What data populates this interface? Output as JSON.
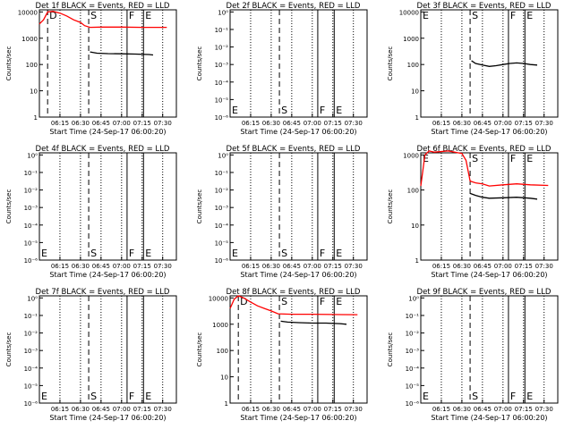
{
  "chart_data": [
    {
      "type": "line",
      "title": "Det 1f BLACK = Events, RED = LLD",
      "xlabel": "Start Time (24-Sep-17 06:00:20)",
      "ylabel": "Counts/sec",
      "yscale": "log",
      "x_ticks": [
        "06:15",
        "06:30",
        "06:45",
        "07:00",
        "07:15",
        "07:30"
      ],
      "y_ticks": [
        "1",
        "10",
        "100",
        "1000",
        "10000"
      ],
      "markers": [
        {
          "label": "D",
          "type": "dashed",
          "x": "06:06"
        },
        {
          "label": "S",
          "type": "dashed",
          "x": "06:36"
        },
        {
          "label": "F",
          "type": "solid",
          "x": "07:04"
        },
        {
          "label": "E",
          "type": "solid",
          "x": "07:16"
        }
      ],
      "series": [
        {
          "name": "RED = LLD",
          "color": "#ff0000",
          "points": [
            [
              "06:00",
              3500
            ],
            [
              "06:03",
              5000
            ],
            [
              "06:06",
              10000
            ],
            [
              "06:10",
              10500
            ],
            [
              "06:15",
              9000
            ],
            [
              "06:20",
              7000
            ],
            [
              "06:25",
              5000
            ],
            [
              "06:30",
              4000
            ],
            [
              "06:33",
              3000
            ],
            [
              "06:37",
              2600
            ],
            [
              "06:45",
              2650
            ],
            [
              "07:00",
              2650
            ],
            [
              "07:15",
              2600
            ],
            [
              "07:33",
              2600
            ]
          ]
        },
        {
          "name": "BLACK = Events",
          "color": "#000000",
          "points": [
            [
              "06:37",
              300
            ],
            [
              "06:42",
              270
            ],
            [
              "06:50",
              260
            ],
            [
              "07:00",
              255
            ],
            [
              "07:10",
              250
            ],
            [
              "07:20",
              240
            ],
            [
              "07:23",
              230
            ]
          ]
        }
      ]
    },
    {
      "type": "line",
      "title": "Det 2f BLACK = Events, RED = LLD",
      "xlabel": "Start Time (24-Sep-17 06:00:20)",
      "ylabel": "Counts/sec",
      "yscale": "log",
      "x_ticks": [
        "06:15",
        "06:30",
        "06:45",
        "07:00",
        "07:15",
        "07:30"
      ],
      "y_ticks": [
        "10⁰",
        "10⁻¹",
        "10⁻²",
        "10⁻³",
        "10⁻⁴",
        "10⁻⁵",
        "10⁻⁶"
      ],
      "markers": [
        {
          "label": "E",
          "type": "dashed",
          "x": "06:00"
        },
        {
          "label": "S",
          "type": "dashed",
          "x": "06:36"
        },
        {
          "label": "F",
          "type": "solid",
          "x": "07:04"
        },
        {
          "label": "E",
          "type": "solid",
          "x": "07:16"
        }
      ],
      "series": []
    },
    {
      "type": "line",
      "title": "Det 3f BLACK = Events, RED = LLD",
      "xlabel": "Start Time (24-Sep-17 06:00:20)",
      "ylabel": "Counts/sec",
      "yscale": "log",
      "x_ticks": [
        "06:15",
        "06:30",
        "06:45",
        "07:00",
        "07:15",
        "07:30"
      ],
      "y_ticks": [
        "1",
        "10",
        "100",
        "1000",
        "10000"
      ],
      "markers": [
        {
          "label": "E",
          "type": "dashed",
          "x": "06:00"
        },
        {
          "label": "S",
          "type": "dashed",
          "x": "06:36"
        },
        {
          "label": "F",
          "type": "solid",
          "x": "07:04"
        },
        {
          "label": "E",
          "type": "solid",
          "x": "07:16"
        }
      ],
      "series": [
        {
          "name": "BLACK = Events",
          "color": "#000000",
          "points": [
            [
              "06:37",
              140
            ],
            [
              "06:40",
              110
            ],
            [
              "06:45",
              95
            ],
            [
              "06:50",
              85
            ],
            [
              "06:55",
              90
            ],
            [
              "07:00",
              100
            ],
            [
              "07:05",
              110
            ],
            [
              "07:10",
              115
            ],
            [
              "07:15",
              110
            ],
            [
              "07:20",
              100
            ],
            [
              "07:25",
              95
            ]
          ]
        }
      ]
    },
    {
      "type": "line",
      "title": "Det 4f BLACK = Events, RED = LLD",
      "xlabel": "Start Time (24-Sep-17 06:00:20)",
      "ylabel": "Counts/sec",
      "yscale": "log",
      "x_ticks": [
        "06:15",
        "06:30",
        "06:45",
        "07:00",
        "07:15",
        "07:30"
      ],
      "y_ticks": [
        "10⁰",
        "10⁻¹",
        "10⁻²",
        "10⁻³",
        "10⁻⁴",
        "10⁻⁵",
        "10⁻⁶"
      ],
      "markers": [
        {
          "label": "E",
          "type": "dashed",
          "x": "06:00"
        },
        {
          "label": "S",
          "type": "dashed",
          "x": "06:36"
        },
        {
          "label": "F",
          "type": "solid",
          "x": "07:04"
        },
        {
          "label": "E",
          "type": "solid",
          "x": "07:16"
        }
      ],
      "series": []
    },
    {
      "type": "line",
      "title": "Det 5f BLACK = Events, RED = LLD",
      "xlabel": "Start Time (24-Sep-17 06:00:20)",
      "ylabel": "Counts/sec",
      "yscale": "log",
      "x_ticks": [
        "06:15",
        "06:30",
        "06:45",
        "07:00",
        "07:15",
        "07:30"
      ],
      "y_ticks": [
        "10⁰",
        "10⁻¹",
        "10⁻²",
        "10⁻³",
        "10⁻⁴",
        "10⁻⁵",
        "10⁻⁶"
      ],
      "markers": [
        {
          "label": "E",
          "type": "dashed",
          "x": "06:00"
        },
        {
          "label": "S",
          "type": "dashed",
          "x": "06:36"
        },
        {
          "label": "F",
          "type": "solid",
          "x": "07:04"
        },
        {
          "label": "E",
          "type": "solid",
          "x": "07:16"
        }
      ],
      "series": []
    },
    {
      "type": "line",
      "title": "Det 6f BLACK = Events, RED = LLD",
      "xlabel": "Start Time (24-Sep-17 06:00:20)",
      "ylabel": "Counts/sec",
      "yscale": "log",
      "x_ticks": [
        "06:15",
        "06:30",
        "06:45",
        "07:00",
        "07:15",
        "07:30"
      ],
      "y_ticks": [
        "1",
        "10",
        "100",
        "1000"
      ],
      "markers": [
        {
          "label": "E",
          "type": "dashed",
          "x": "06:00"
        },
        {
          "label": "S",
          "type": "dashed",
          "x": "06:36"
        },
        {
          "label": "F",
          "type": "solid",
          "x": "07:04"
        },
        {
          "label": "E",
          "type": "solid",
          "x": "07:16"
        }
      ],
      "series": [
        {
          "name": "RED = LLD",
          "color": "#ff0000",
          "points": [
            [
              "06:00",
              130
            ],
            [
              "06:03",
              1000
            ],
            [
              "06:06",
              1300
            ],
            [
              "06:10",
              1200
            ],
            [
              "06:20",
              1300
            ],
            [
              "06:30",
              1100
            ],
            [
              "06:33",
              700
            ],
            [
              "06:36",
              180
            ],
            [
              "06:40",
              160
            ],
            [
              "06:45",
              150
            ],
            [
              "06:50",
              130
            ],
            [
              "07:00",
              140
            ],
            [
              "07:10",
              150
            ],
            [
              "07:20",
              140
            ],
            [
              "07:33",
              135
            ]
          ]
        },
        {
          "name": "BLACK = Events",
          "color": "#000000",
          "points": [
            [
              "06:36",
              80
            ],
            [
              "06:40",
              70
            ],
            [
              "06:45",
              62
            ],
            [
              "06:50",
              58
            ],
            [
              "07:00",
              60
            ],
            [
              "07:10",
              62
            ],
            [
              "07:20",
              58
            ],
            [
              "07:25",
              55
            ]
          ]
        }
      ]
    },
    {
      "type": "line",
      "title": "Det 7f BLACK = Events, RED = LLD",
      "xlabel": "Start Time (24-Sep-17 06:00:20)",
      "ylabel": "Counts/sec",
      "yscale": "log",
      "x_ticks": [
        "06:15",
        "06:30",
        "06:45",
        "07:00",
        "07:15",
        "07:30"
      ],
      "y_ticks": [
        "10⁰",
        "10⁻¹",
        "10⁻²",
        "10⁻³",
        "10⁻⁴",
        "10⁻⁵",
        "10⁻⁶"
      ],
      "markers": [
        {
          "label": "E",
          "type": "dashed",
          "x": "06:00"
        },
        {
          "label": "S",
          "type": "dashed",
          "x": "06:36"
        },
        {
          "label": "F",
          "type": "solid",
          "x": "07:04"
        },
        {
          "label": "E",
          "type": "solid",
          "x": "07:16"
        }
      ],
      "series": []
    },
    {
      "type": "line",
      "title": "Det 8f BLACK = Events, RED = LLD",
      "xlabel": "Start Time (24-Sep-17 06:00:20)",
      "ylabel": "Counts/sec",
      "yscale": "log",
      "x_ticks": [
        "06:15",
        "06:30",
        "06:45",
        "07:00",
        "07:15",
        "07:30"
      ],
      "y_ticks": [
        "1",
        "10",
        "100",
        "1000",
        "10000"
      ],
      "markers": [
        {
          "label": "D",
          "type": "dashed",
          "x": "06:06"
        },
        {
          "label": "S",
          "type": "dashed",
          "x": "06:36"
        },
        {
          "label": "F",
          "type": "solid",
          "x": "07:04"
        },
        {
          "label": "E",
          "type": "solid",
          "x": "07:16"
        }
      ],
      "series": [
        {
          "name": "RED = LLD",
          "color": "#ff0000",
          "points": [
            [
              "06:00",
              4000
            ],
            [
              "06:03",
              9000
            ],
            [
              "06:06",
              12000
            ],
            [
              "06:10",
              10000
            ],
            [
              "06:15",
              7000
            ],
            [
              "06:20",
              5000
            ],
            [
              "06:25",
              4000
            ],
            [
              "06:30",
              3200
            ],
            [
              "06:35",
              2500
            ],
            [
              "06:45",
              2400
            ],
            [
              "07:00",
              2400
            ],
            [
              "07:15",
              2350
            ],
            [
              "07:33",
              2300
            ]
          ]
        },
        {
          "name": "BLACK = Events",
          "color": "#000000",
          "points": [
            [
              "06:37",
              1300
            ],
            [
              "06:42",
              1200
            ],
            [
              "06:50",
              1150
            ],
            [
              "07:00",
              1100
            ],
            [
              "07:10",
              1100
            ],
            [
              "07:20",
              1050
            ],
            [
              "07:25",
              1000
            ]
          ]
        }
      ]
    },
    {
      "type": "line",
      "title": "Det 9f BLACK = Events, RED = LLD",
      "xlabel": "Start Time (24-Sep-17 06:00:20)",
      "ylabel": "Counts/sec",
      "yscale": "log",
      "x_ticks": [
        "06:15",
        "06:30",
        "06:45",
        "07:00",
        "07:15",
        "07:30"
      ],
      "y_ticks": [
        "10⁰",
        "10⁻¹",
        "10⁻²",
        "10⁻³",
        "10⁻⁴",
        "10⁻⁵",
        "10⁻⁶"
      ],
      "markers": [
        {
          "label": "E",
          "type": "dashed",
          "x": "06:00"
        },
        {
          "label": "S",
          "type": "dashed",
          "x": "06:36"
        },
        {
          "label": "F",
          "type": "solid",
          "x": "07:04"
        },
        {
          "label": "E",
          "type": "solid",
          "x": "07:16"
        }
      ],
      "series": []
    }
  ]
}
